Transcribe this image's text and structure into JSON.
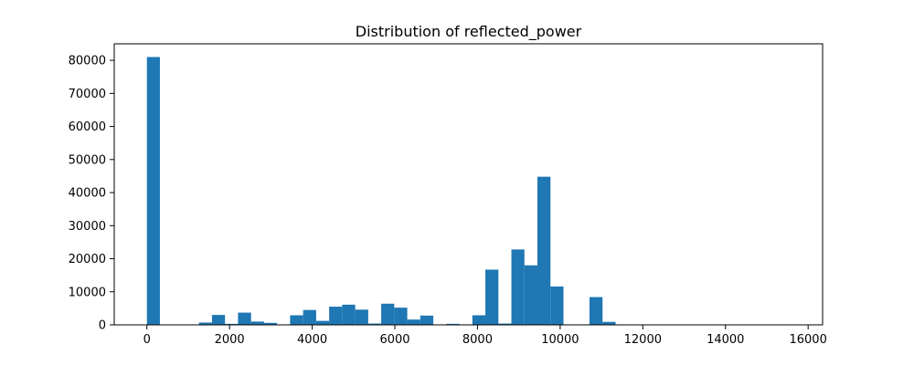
{
  "chart_data": {
    "type": "bar",
    "title": "Distribution of reflected_power",
    "xlabel": "",
    "ylabel": "",
    "xlim": [
      -790,
      16350
    ],
    "ylim": [
      0,
      85000
    ],
    "bin_width": 315,
    "x_ticks": [
      0,
      2000,
      4000,
      6000,
      8000,
      10000,
      12000,
      14000,
      16000
    ],
    "y_ticks": [
      0,
      10000,
      20000,
      30000,
      40000,
      50000,
      60000,
      70000,
      80000
    ],
    "grid": false,
    "legend": "none",
    "bar_color": "#1f77b4",
    "bins": [
      {
        "x": 0,
        "count": 81000
      },
      {
        "x": 1260,
        "count": 700
      },
      {
        "x": 1575,
        "count": 3000
      },
      {
        "x": 1890,
        "count": 300
      },
      {
        "x": 2205,
        "count": 3700
      },
      {
        "x": 2520,
        "count": 1000
      },
      {
        "x": 2835,
        "count": 600
      },
      {
        "x": 3150,
        "count": 100
      },
      {
        "x": 3465,
        "count": 2900
      },
      {
        "x": 3780,
        "count": 4500
      },
      {
        "x": 4095,
        "count": 1200
      },
      {
        "x": 4410,
        "count": 5500
      },
      {
        "x": 4725,
        "count": 6100
      },
      {
        "x": 5040,
        "count": 4600
      },
      {
        "x": 5355,
        "count": 400
      },
      {
        "x": 5670,
        "count": 6400
      },
      {
        "x": 5985,
        "count": 5200
      },
      {
        "x": 6300,
        "count": 1600
      },
      {
        "x": 6615,
        "count": 2800
      },
      {
        "x": 6930,
        "count": 100
      },
      {
        "x": 7245,
        "count": 300
      },
      {
        "x": 7560,
        "count": 100
      },
      {
        "x": 7875,
        "count": 2900
      },
      {
        "x": 8190,
        "count": 16700
      },
      {
        "x": 8505,
        "count": 400
      },
      {
        "x": 8820,
        "count": 22800
      },
      {
        "x": 9135,
        "count": 18000
      },
      {
        "x": 9450,
        "count": 44800
      },
      {
        "x": 9765,
        "count": 11600
      },
      {
        "x": 10710,
        "count": 8400
      },
      {
        "x": 11025,
        "count": 900
      }
    ]
  }
}
